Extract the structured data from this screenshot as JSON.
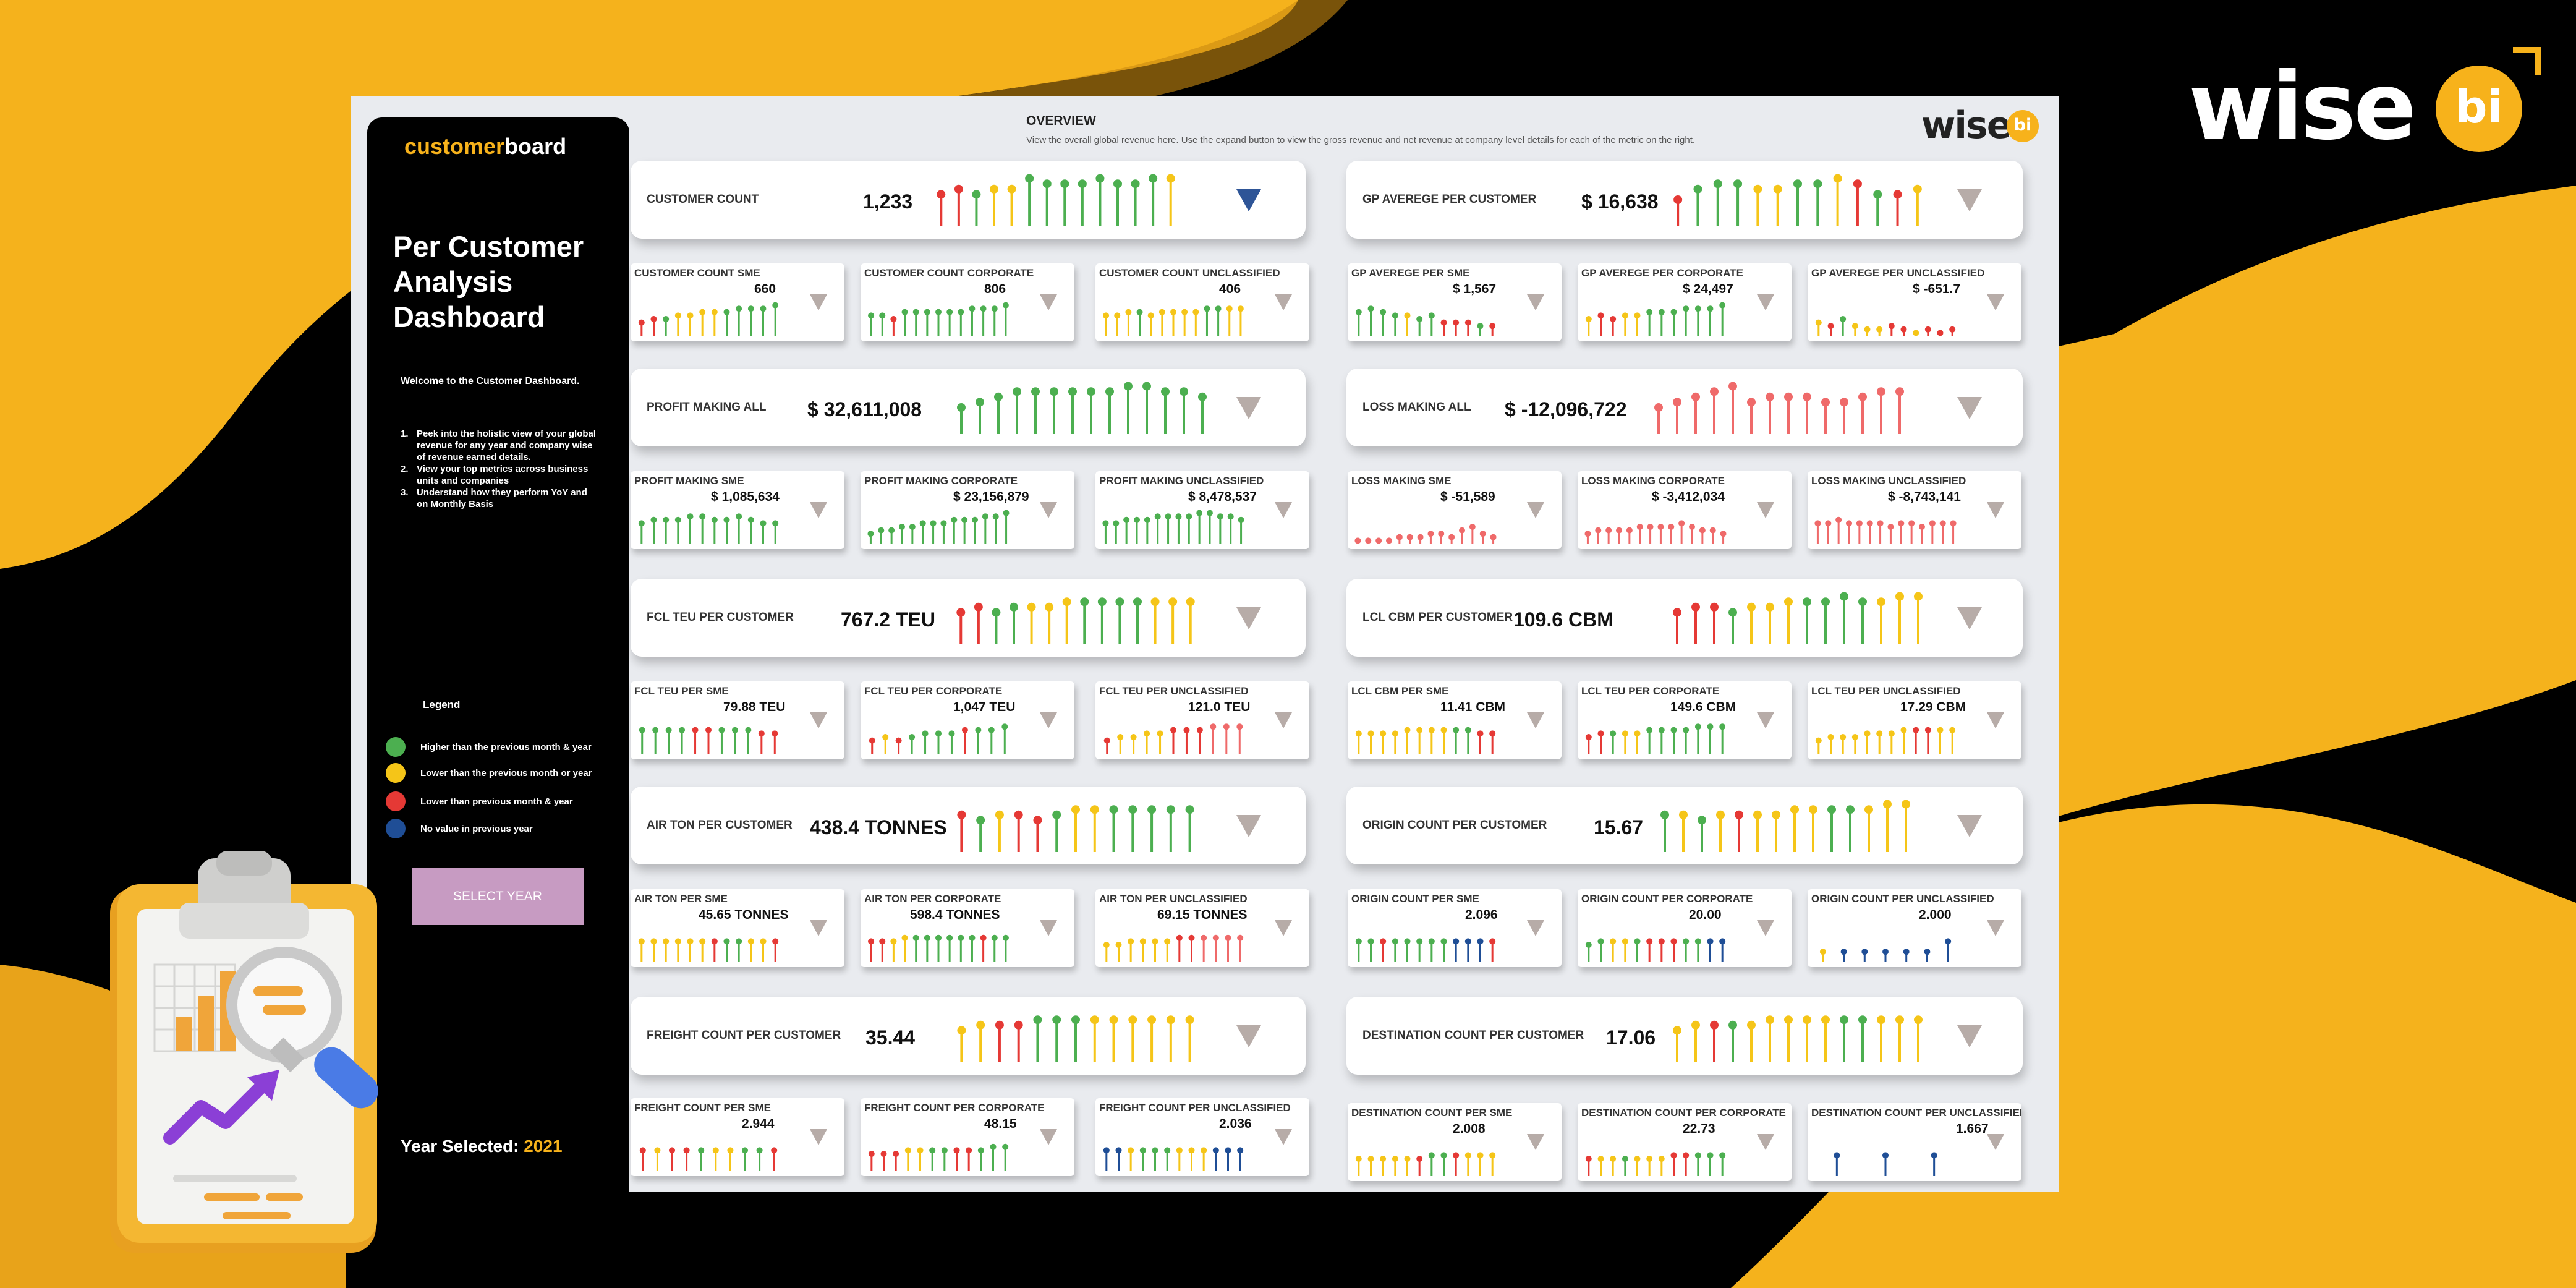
{
  "brand": {
    "word": "wise",
    "badge": "bi"
  },
  "sidebar": {
    "logo_part1": "customer",
    "logo_part2": "board",
    "title": "Per Customer Analysis Dashboard",
    "welcome": "Welcome to the Customer Dashboard.",
    "points": [
      {
        "num": "1.",
        "text": "Peek into the holistic view of your global revenue for any year and company wise of revenue earned details."
      },
      {
        "num": "2.",
        "text": "View your top metrics across business units and companies"
      },
      {
        "num": "3.",
        "text": "Understand how they perform YoY and on Monthly Basis"
      }
    ],
    "legend_title": "Legend",
    "legend": [
      {
        "color": "#4caf50",
        "text": "Higher than the previous month & year"
      },
      {
        "color": "#f5c518",
        "text": "Lower than the previous month or year"
      },
      {
        "color": "#e53935",
        "text": "Lower than previous month & year"
      },
      {
        "color": "#1f4e96",
        "text": "No value in previous year"
      }
    ],
    "select_year": "SELECT YEAR",
    "year_label": "Year Selected: ",
    "year_value": "2021"
  },
  "overview": {
    "title": "OVERVIEW",
    "description": "View the overall global revenue here. Use the expand button to view the gross revenue and net revenue at company level details for each of the metric on the right.",
    "logo_word": "wise",
    "logo_badge": "bi"
  },
  "cards": {
    "customer_count": {
      "label": "CUSTOMER COUNT",
      "value": "1,233"
    },
    "customer_count_sme": {
      "label": "CUSTOMER COUNT SME",
      "value": "660"
    },
    "customer_count_corporate": {
      "label": "CUSTOMER COUNT CORPORATE",
      "value": "806"
    },
    "customer_count_unclassified": {
      "label": "CUSTOMER COUNT UNCLASSIFIED",
      "value": "406"
    },
    "gp_per_customer": {
      "label": "GP AVEREGE PER CUSTOMER",
      "value": "$ 16,638"
    },
    "gp_per_sme": {
      "label": "GP AVEREGE PER SME",
      "value": "$ 1,567"
    },
    "gp_per_corporate": {
      "label": "GP AVEREGE PER CORPORATE",
      "value": "$ 24,497"
    },
    "gp_per_unclassified": {
      "label": "GP AVEREGE PER UNCLASSIFIED",
      "value": "$ -651.7"
    },
    "profit_making_all": {
      "label": "PROFIT MAKING ALL",
      "value": "$ 32,611,008"
    },
    "profit_making_sme": {
      "label": "PROFIT MAKING SME",
      "value": "$ 1,085,634"
    },
    "profit_making_corporate": {
      "label": "PROFIT MAKING CORPORATE",
      "value": "$ 23,156,879"
    },
    "profit_making_unclassified": {
      "label": "PROFIT MAKING UNCLASSIFIED",
      "value": "$ 8,478,537"
    },
    "loss_making_all": {
      "label": "LOSS MAKING ALL",
      "value": "$ -12,096,722"
    },
    "loss_making_sme": {
      "label": "LOSS MAKING SME",
      "value": "$ -51,589"
    },
    "loss_making_corporate": {
      "label": "LOSS MAKING CORPORATE",
      "value": "$ -3,412,034"
    },
    "loss_making_unclassified": {
      "label": "LOSS MAKING UNCLASSIFIED",
      "value": "$ -8,743,141"
    },
    "fcl_teu_per_customer": {
      "label": "FCL TEU PER CUSTOMER",
      "value": "767.2 TEU"
    },
    "fcl_teu_per_sme": {
      "label": "FCL TEU PER SME",
      "value": "79.88 TEU"
    },
    "fcl_teu_per_corporate": {
      "label": "FCL TEU PER CORPORATE",
      "value": "1,047 TEU"
    },
    "fcl_teu_per_unclassified": {
      "label": "FCL TEU PER UNCLASSIFIED",
      "value": "121.0 TEU"
    },
    "lcl_cbm_per_customer": {
      "label": "LCL CBM PER CUSTOMER",
      "value": "109.6 CBM"
    },
    "lcl_cbm_per_sme": {
      "label": "LCL CBM PER SME",
      "value": "11.41 CBM"
    },
    "lcl_teu_per_corporate": {
      "label": "LCL TEU PER CORPORATE",
      "value": "149.6 CBM"
    },
    "lcl_teu_per_unclassified": {
      "label": "LCL TEU PER UNCLASSIFIED",
      "value": "17.29 CBM"
    },
    "air_ton_per_customer": {
      "label": "AIR TON PER CUSTOMER",
      "value": "438.4 TONNES"
    },
    "air_ton_per_sme": {
      "label": "AIR TON PER SME",
      "value": "45.65 TONNES"
    },
    "air_ton_per_corporate": {
      "label": "AIR TON PER CORPORATE",
      "value": "598.4 TONNES"
    },
    "air_ton_per_unclassified": {
      "label": "AIR TON PER UNCLASSIFIED",
      "value": "69.15 TONNES"
    },
    "origin_count_per_customer": {
      "label": "ORIGIN COUNT PER CUSTOMER",
      "value": "15.67"
    },
    "origin_count_per_sme": {
      "label": "ORIGIN COUNT PER SME",
      "value": "2.096"
    },
    "origin_count_per_corporate": {
      "label": "ORIGIN COUNT PER CORPORATE",
      "value": "20.00"
    },
    "origin_count_per_unclassified": {
      "label": "ORIGIN COUNT PER UNCLASSIFIED",
      "value": "2.000"
    },
    "freight_count_per_customer": {
      "label": "FREIGHT COUNT PER CUSTOMER",
      "value": "35.44"
    },
    "freight_count_per_sme": {
      "label": "FREIGHT COUNT PER SME",
      "value": "2.944"
    },
    "freight_count_per_corporate": {
      "label": "FREIGHT COUNT PER CORPORATE",
      "value": "48.15"
    },
    "freight_count_per_unclassified": {
      "label": "FREIGHT COUNT PER UNCLASSIFIED",
      "value": "2.036"
    },
    "destination_count_per_customer": {
      "label": "DESTINATION COUNT PER CUSTOMER",
      "value": "17.06"
    },
    "destination_count_per_sme": {
      "label": "DESTINATION COUNT PER SME",
      "value": "2.008"
    },
    "destination_count_per_corporate": {
      "label": "DESTINATION COUNT PER CORPORATE",
      "value": "22.73"
    },
    "destination_count_per_unclassified": {
      "label": "DESTINATION COUNT PER UNCLASSIFIED",
      "value": "1.667"
    }
  },
  "palette": {
    "accent": "#f7b21b",
    "green": "#4caf50",
    "yellow": "#f5c518",
    "red": "#e53935",
    "blue": "#1f4e96",
    "pink": "#ef6a6a"
  },
  "icons": {
    "expand": "triangle-down-icon",
    "clipboard": "clipboard-chart-icon"
  }
}
